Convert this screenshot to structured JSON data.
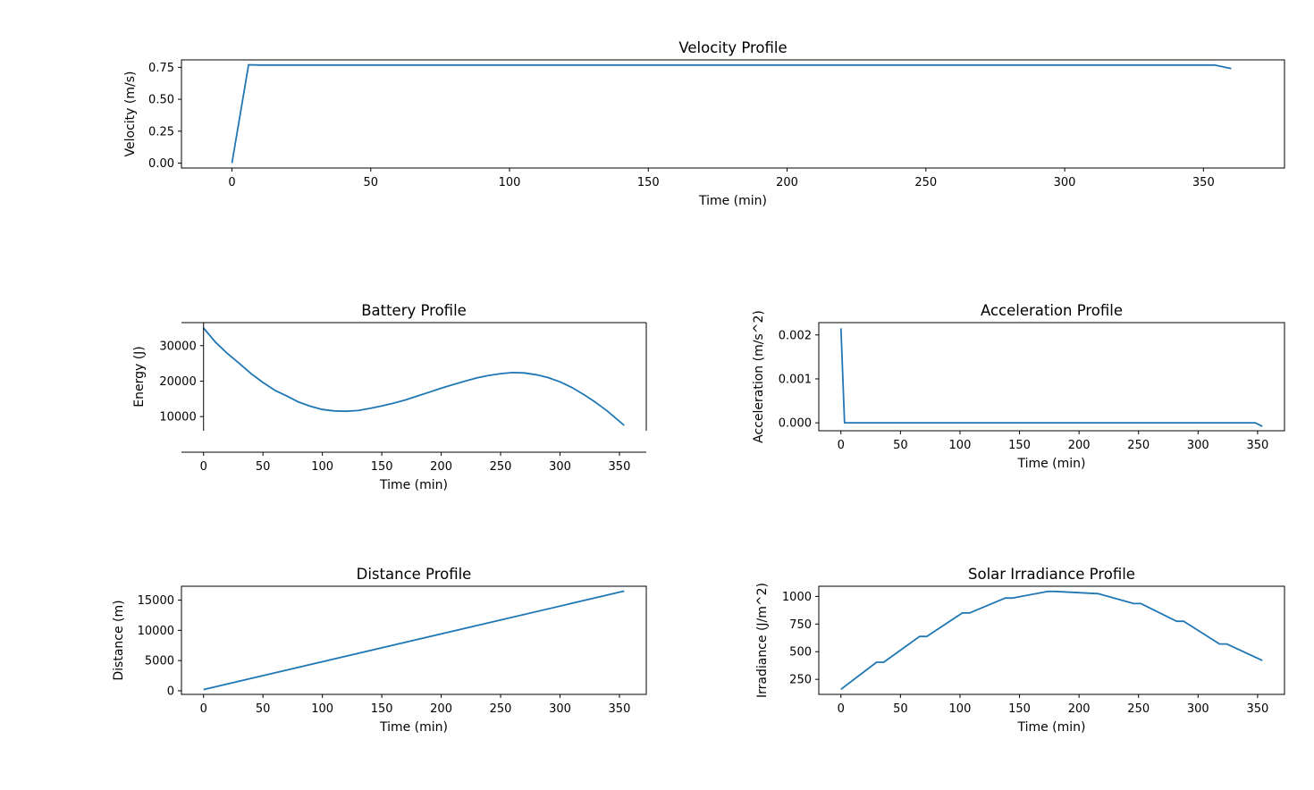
{
  "colors": {
    "line": "#1f77b4",
    "axes": "#000000",
    "background": "#ffffff"
  },
  "chart_data": [
    {
      "id": "velocity",
      "type": "line",
      "title": "Velocity Profile",
      "xlabel": "Time (min)",
      "ylabel": "Velocity (m/s)",
      "xlim": [
        -18.2,
        379.2
      ],
      "ylim": [
        -0.0385,
        0.8085
      ],
      "xticks": [
        0,
        50,
        100,
        150,
        200,
        250,
        300,
        350
      ],
      "xtick_labels": [
        "0",
        "50",
        "100",
        "150",
        "200",
        "250",
        "300",
        "350"
      ],
      "yticks": [
        0,
        0.25,
        0.5,
        0.75
      ],
      "ytick_labels": [
        "0.00",
        "0.25",
        "0.50",
        "0.75"
      ],
      "grid": false,
      "series": [
        {
          "x": [
            0,
            6,
            10,
            30,
            100,
            200,
            300,
            354,
            360
          ],
          "y": [
            0,
            0.77,
            0.768,
            0.768,
            0.768,
            0.768,
            0.768,
            0.768,
            0.74
          ]
        }
      ]
    },
    {
      "id": "battery",
      "type": "line",
      "title": "Battery Profile",
      "xlabel": "Time (min)",
      "ylabel": "Energy (J)",
      "xlim": [
        -18.6,
        372.6
      ],
      "ylim": [
        6000,
        36500
      ],
      "xticks": [
        0,
        50,
        100,
        150,
        200,
        250,
        300,
        350
      ],
      "xtick_labels": [
        "0",
        "50",
        "100",
        "150",
        "200",
        "250",
        "300",
        "350"
      ],
      "yticks": [
        10000,
        20000,
        30000
      ],
      "ytick_labels": [
        "10000",
        "20000",
        "30000"
      ],
      "grid": false,
      "series": [
        {
          "x": [
            0,
            10,
            20,
            30,
            40,
            50,
            60,
            70,
            80,
            90,
            100,
            110,
            120,
            130,
            140,
            150,
            160,
            170,
            180,
            190,
            200,
            210,
            220,
            230,
            240,
            250,
            260,
            270,
            280,
            290,
            300,
            310,
            320,
            330,
            340,
            354
          ],
          "y": [
            35000,
            31000,
            27800,
            25000,
            22100,
            19600,
            17400,
            15800,
            14100,
            12900,
            12000,
            11600,
            11500,
            11700,
            12300,
            13000,
            13800,
            14700,
            15800,
            16900,
            18000,
            19000,
            20000,
            20900,
            21600,
            22100,
            22400,
            22300,
            21800,
            21000,
            19800,
            18200,
            16200,
            14000,
            11500,
            7500
          ]
        }
      ]
    },
    {
      "id": "acceleration",
      "type": "line",
      "title": "Acceleration Profile",
      "xlabel": "Time (min)",
      "ylabel": "Acceleration (m/s^2)",
      "xlim": [
        -18.6,
        372.6
      ],
      "ylim": [
        -0.00018,
        0.00228
      ],
      "xticks": [
        0,
        50,
        100,
        150,
        200,
        250,
        300,
        350
      ],
      "xtick_labels": [
        "0",
        "50",
        "100",
        "150",
        "200",
        "250",
        "300",
        "350"
      ],
      "yticks": [
        0,
        0.001,
        0.002
      ],
      "ytick_labels": [
        "0.000",
        "0.001",
        "0.002"
      ],
      "grid": false,
      "series": [
        {
          "x": [
            0,
            3,
            100,
            200,
            300,
            348,
            354
          ],
          "y": [
            0.00215,
            0,
            0,
            0,
            0,
            0,
            -8e-05
          ]
        }
      ]
    },
    {
      "id": "distance",
      "type": "line",
      "title": "Distance Profile",
      "xlabel": "Time (min)",
      "ylabel": "Distance (m)",
      "xlim": [
        -18.6,
        372.6
      ],
      "ylim": [
        -600,
        17300
      ],
      "xticks": [
        0,
        50,
        100,
        150,
        200,
        250,
        300,
        350
      ],
      "xtick_labels": [
        "0",
        "50",
        "100",
        "150",
        "200",
        "250",
        "300",
        "350"
      ],
      "yticks": [
        0,
        5000,
        10000,
        15000
      ],
      "ytick_labels": [
        "0",
        "5000",
        "10000",
        "15000"
      ],
      "grid": false,
      "series": [
        {
          "x": [
            0,
            354
          ],
          "y": [
            200,
            16500
          ]
        }
      ]
    },
    {
      "id": "irradiance",
      "type": "line",
      "title": "Solar Irradiance Profile",
      "xlabel": "Time (min)",
      "ylabel": "Irradiance (J/m^2)",
      "xlim": [
        -18.6,
        372.6
      ],
      "ylim": [
        114,
        1092
      ],
      "xticks": [
        0,
        50,
        100,
        150,
        200,
        250,
        300,
        350
      ],
      "xtick_labels": [
        "0",
        "50",
        "100",
        "150",
        "200",
        "250",
        "300",
        "350"
      ],
      "yticks": [
        250,
        500,
        750,
        1000
      ],
      "ytick_labels": [
        "250",
        "500",
        "750",
        "1000"
      ],
      "grid": false,
      "series": [
        {
          "x": [
            0,
            30,
            36,
            66,
            72,
            102,
            108,
            138,
            144,
            174,
            180,
            216,
            246,
            252,
            282,
            288,
            318,
            324,
            354
          ],
          "y": [
            160,
            405,
            405,
            638,
            638,
            850,
            850,
            985,
            985,
            1045,
            1045,
            1025,
            935,
            935,
            775,
            775,
            570,
            570,
            420
          ]
        }
      ]
    }
  ]
}
